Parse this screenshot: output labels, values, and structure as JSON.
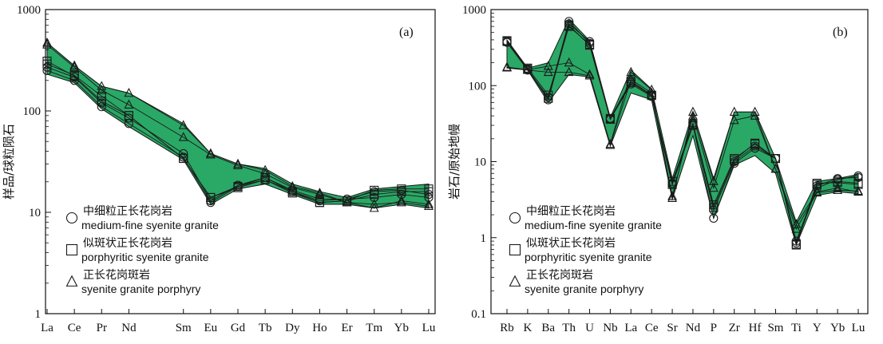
{
  "figure": {
    "colors": {
      "fill": "#2aa866",
      "line": "#1a1a1a",
      "axis": "#111111"
    }
  },
  "legend": {
    "items": [
      {
        "marker": "circle",
        "cn": "中细粒正长花岗岩",
        "en": "medium-fine syenite granite"
      },
      {
        "marker": "square",
        "cn": "似斑状正长花岗岩",
        "en": "porphyritic  syenite granite"
      },
      {
        "marker": "triangle",
        "cn": "正长花岗斑岩",
        "en": "syenite granite porphyry"
      }
    ]
  },
  "chart_data": [
    {
      "type": "line",
      "panel_label": "(a)",
      "ylabel": "样品/球粒陨石",
      "yscale": "log",
      "ylim": [
        1,
        1000
      ],
      "yticks": [
        "1",
        "10",
        "100",
        "1000"
      ],
      "categories": [
        "La",
        "Ce",
        "Pr",
        "Nd",
        "Sm",
        "Eu",
        "Gd",
        "Tb",
        "Dy",
        "Ho",
        "Er",
        "Tm",
        "Yb",
        "Lu"
      ],
      "x_index": [
        0,
        1,
        2,
        3,
        5,
        6,
        7,
        8,
        9,
        10,
        11,
        12,
        13,
        14
      ],
      "x_extent": [
        0,
        14
      ],
      "envelope": {
        "upper": [
          470,
          280,
          175,
          150,
          75,
          38,
          30,
          27,
          19,
          16,
          14,
          17,
          18,
          19
        ],
        "lower": [
          230,
          190,
          105,
          70,
          33,
          12,
          17,
          19,
          15,
          12,
          12,
          11,
          12,
          11
        ]
      },
      "series": [
        {
          "marker": "circle",
          "values": [
            250,
            200,
            110,
            75,
            35,
            12.5,
            18,
            21,
            16,
            13,
            13.5,
            14,
            15,
            14
          ]
        },
        {
          "marker": "circle",
          "values": [
            270,
            215,
            120,
            85,
            38,
            13,
            18.5,
            22,
            16.5,
            13.5,
            13.5,
            16,
            16.5,
            15
          ]
        },
        {
          "marker": "square",
          "values": [
            310,
            220,
            125,
            90,
            34,
            14,
            18,
            22,
            16,
            12.5,
            13,
            15,
            16,
            16
          ]
        },
        {
          "marker": "square",
          "values": [
            290,
            225,
            140,
            90,
            34,
            14,
            17.5,
            21,
            15.5,
            12.5,
            13,
            16.5,
            17,
            17
          ]
        },
        {
          "marker": "triangle",
          "values": [
            470,
            280,
            175,
            150,
            72,
            38,
            30,
            26,
            18,
            15.5,
            12.5,
            12,
            12.5,
            11.5
          ]
        },
        {
          "marker": "triangle",
          "values": [
            450,
            270,
            160,
            115,
            55,
            37,
            29,
            24,
            17.5,
            15,
            12.5,
            11,
            13,
            12
          ]
        }
      ]
    },
    {
      "type": "line",
      "panel_label": "(b)",
      "ylabel": "岩石/原始地幔",
      "yscale": "log",
      "ylim": [
        0.1,
        1000
      ],
      "yticks": [
        "0.1",
        "1",
        "10",
        "100",
        "1000"
      ],
      "categories": [
        "Rb",
        "K",
        "Ba",
        "Th",
        "U",
        "Nb",
        "La",
        "Ce",
        "Sr",
        "Nd",
        "P",
        "Zr",
        "Hf",
        "Sm",
        "Ti",
        "Y",
        "Yb",
        "Lu"
      ],
      "x_index": [
        0,
        1,
        2,
        3,
        4,
        5,
        6,
        7,
        8,
        9,
        10,
        11,
        12,
        13,
        14,
        15,
        16,
        17
      ],
      "x_extent": [
        0,
        17
      ],
      "envelope": {
        "upper": [
          400,
          170,
          200,
          750,
          390,
          38,
          160,
          90,
          6,
          45,
          6,
          45,
          45,
          11,
          1.6,
          5.5,
          6,
          6.8
        ],
        "lower": [
          170,
          160,
          60,
          140,
          130,
          16,
          80,
          65,
          3.2,
          22,
          1.8,
          9,
          12,
          7,
          0.8,
          3.6,
          4,
          3.8
        ]
      },
      "series": [
        {
          "marker": "circle",
          "values": [
            380,
            165,
            65,
            650,
            380,
            36,
            105,
            72,
            5,
            30,
            1.8,
            9.5,
            15,
            11,
            0.85,
            4.5,
            5.8,
            6.5
          ]
        },
        {
          "marker": "circle",
          "values": [
            370,
            160,
            70,
            700,
            360,
            37,
            110,
            75,
            5.2,
            32,
            2.3,
            10,
            16,
            11,
            0.9,
            4.8,
            6,
            6.2
          ]
        },
        {
          "marker": "square",
          "values": [
            390,
            170,
            75,
            600,
            350,
            37,
            115,
            75,
            5,
            30,
            2.5,
            10.5,
            17.5,
            11,
            0.8,
            5,
            5.5,
            5.2
          ]
        },
        {
          "marker": "square",
          "values": [
            380,
            165,
            68,
            620,
            340,
            36,
            110,
            74,
            5.5,
            31,
            2.7,
            11,
            17,
            11,
            0.82,
            5.2,
            5.3,
            5
          ]
        },
        {
          "marker": "triangle",
          "values": [
            175,
            162,
            180,
            200,
            140,
            17,
            150,
            88,
            3.3,
            45,
            5.5,
            45,
            45,
            8,
            1.5,
            4,
            4.5,
            4
          ]
        },
        {
          "marker": "triangle",
          "values": [
            172,
            160,
            150,
            150,
            135,
            16.5,
            120,
            80,
            3.5,
            40,
            4.5,
            35,
            40,
            8,
            1.3,
            3.9,
            4.2,
            4.1
          ]
        }
      ]
    }
  ]
}
